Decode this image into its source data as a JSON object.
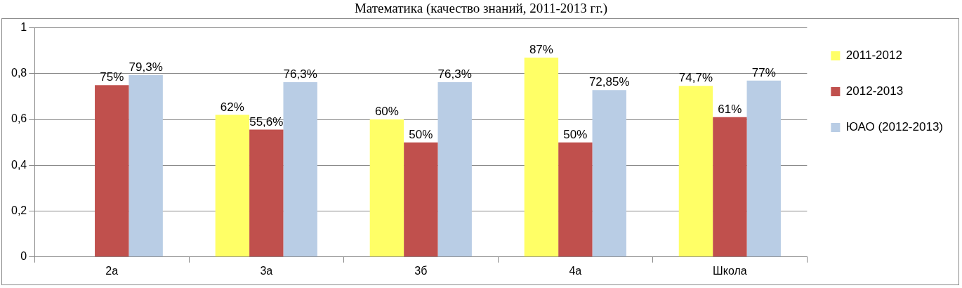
{
  "chart_data": {
    "type": "bar",
    "title": "Математика (качество знаний, 2011-2013 гг.)",
    "categories": [
      "2а",
      "3а",
      "3б",
      "4а",
      "Школа"
    ],
    "series": [
      {
        "name": "2011-2012",
        "color": "#ffff66",
        "values": [
          null,
          0.62,
          0.6,
          0.87,
          0.747
        ],
        "value_labels": [
          null,
          "62%",
          "60%",
          "87%",
          "74,7%"
        ]
      },
      {
        "name": "2012-2013",
        "color": "#c0504d",
        "values": [
          0.75,
          0.556,
          0.5,
          0.5,
          0.61
        ],
        "value_labels": [
          "75%",
          "55,6%",
          "50%",
          "50%",
          "61%"
        ]
      },
      {
        "name": "ЮАО (2012-2013)",
        "color": "#b9cde5",
        "values": [
          0.793,
          0.763,
          0.763,
          0.7285,
          0.77
        ],
        "value_labels": [
          "79,3%",
          "76,3%",
          "76,3%",
          "72,85%",
          "77%"
        ]
      }
    ],
    "ylim": [
      0,
      1
    ],
    "yticks": [
      0,
      {
        "value": 0.2,
        "label": "0,2"
      },
      {
        "value": 0.4,
        "label": "0,4"
      },
      {
        "value": 0.6,
        "label": "0,6"
      },
      {
        "value": 0.8,
        "label": "0,8"
      },
      1
    ],
    "grid": "y",
    "legend": "right"
  }
}
